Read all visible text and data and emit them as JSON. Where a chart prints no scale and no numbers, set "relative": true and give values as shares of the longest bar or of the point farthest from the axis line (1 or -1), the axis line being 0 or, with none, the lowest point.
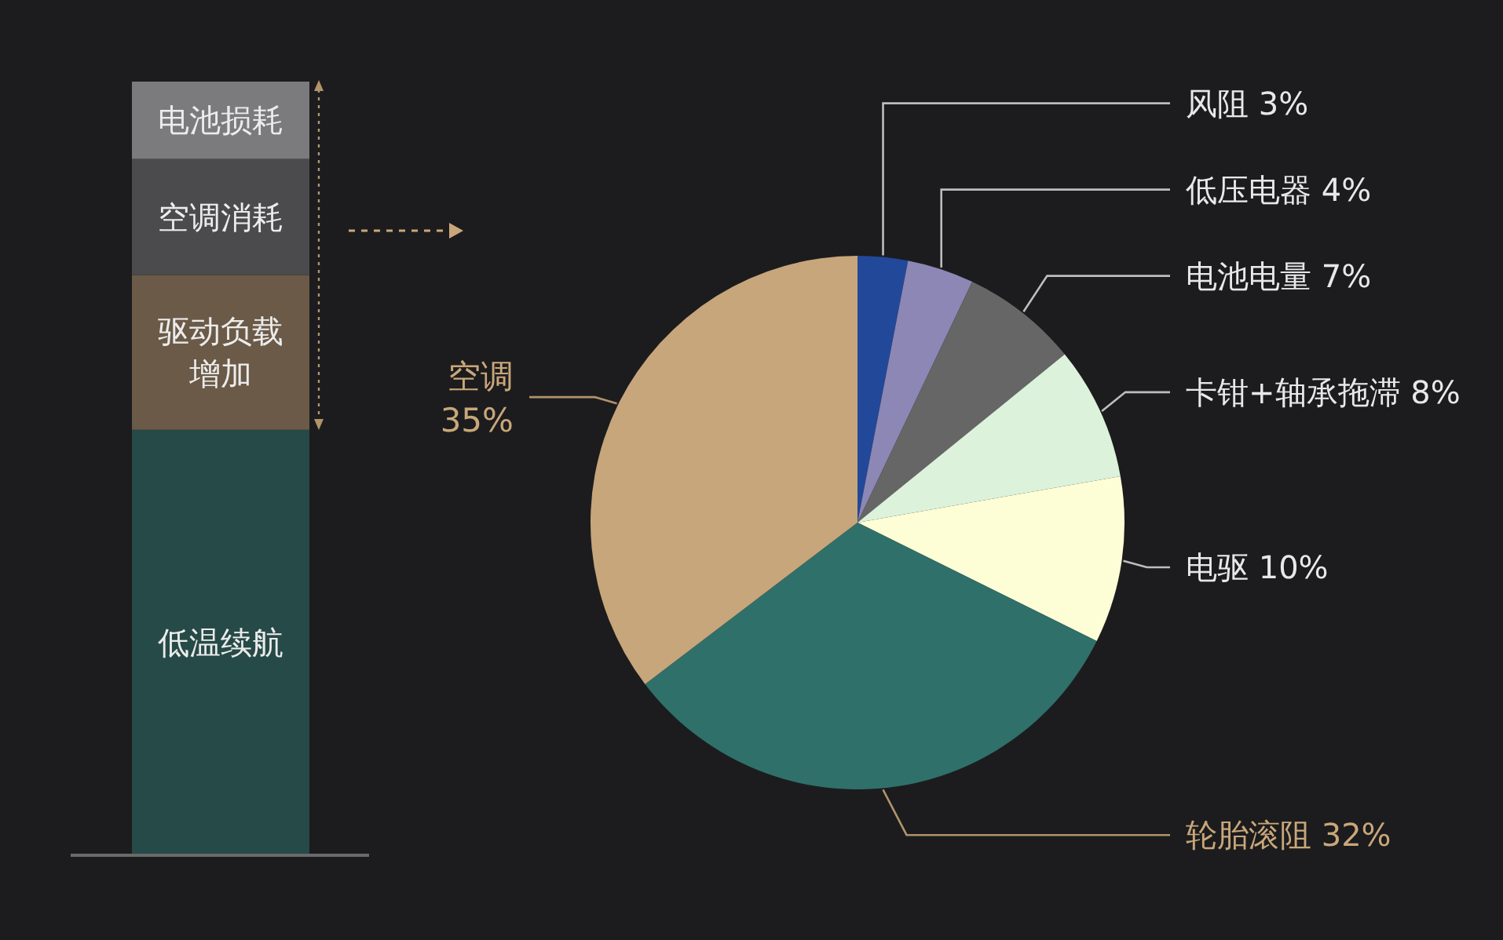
{
  "chart_data": [
    {
      "type": "bar",
      "stacked": true,
      "relative": true,
      "categories": [
        null
      ],
      "series": [
        {
          "name": "低温续航",
          "color": "#264a47",
          "values": [
            0.55
          ]
        },
        {
          "name": "驱动负载增加",
          "color": "#6b5a47",
          "values": [
            0.2
          ]
        },
        {
          "name": "空调消耗",
          "color": "#4b4b4d",
          "values": [
            0.15
          ]
        },
        {
          "name": "电池损耗",
          "color": "#7b7b7d",
          "values": [
            0.1
          ]
        }
      ]
    },
    {
      "type": "pie",
      "categories": [
        "风阻",
        "低压电器",
        "电池电量",
        "卡钳+轴承拖滞",
        "电驱",
        "轮胎滚阻",
        "空调"
      ],
      "values": [
        3,
        4,
        7,
        8,
        10,
        32,
        35
      ],
      "colors": [
        "#22489a",
        "#8c87b5",
        "#666666",
        "#dcf2da",
        "#fefed6",
        "#2f706a",
        "#c6a67a"
      ],
      "value_labels": [
        "3%",
        "4%",
        "7%",
        "8%",
        "10%",
        "32%",
        "35%"
      ]
    }
  ]
}
